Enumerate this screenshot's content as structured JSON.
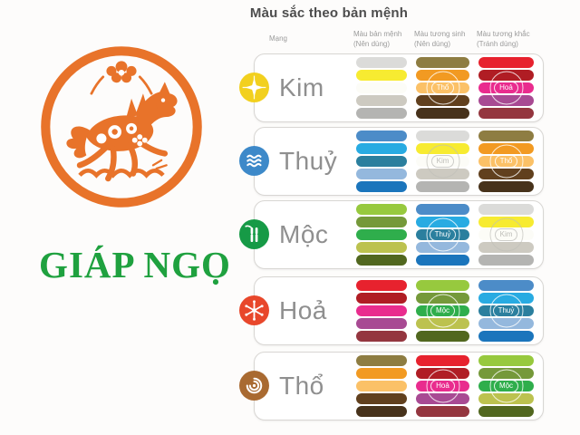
{
  "zodiac": {
    "label": "GIÁP NGỌ",
    "text_color": "#1fa13f",
    "logo_color": "#e8732a",
    "logo_icon": "horse-papercut-icon"
  },
  "table": {
    "title": "Màu sắc theo bản mệnh",
    "headers": {
      "element": "Mạng",
      "own": {
        "line1": "Màu bản mệnh",
        "line2": "(Nên dùng)"
      },
      "sinh": {
        "line1": "Màu tương sinh",
        "line2": "(Nên dùng)"
      },
      "khac": {
        "line1": "Màu tương khắc",
        "line2": "(Tránh dùng)"
      }
    }
  },
  "palettes": {
    "kim": [
      "#dbdbd9",
      "#f7eb31",
      "#fcfcf7",
      "#cdcac1",
      "#b4b4b2"
    ],
    "thuy": [
      "#4c8cc8",
      "#28abe2",
      "#2b7f9e",
      "#94b8dd",
      "#1b75bc"
    ],
    "moc": [
      "#97c93e",
      "#75993a",
      "#2fae4c",
      "#bcc24f",
      "#51671f"
    ],
    "hoa": [
      "#e7222e",
      "#b01d24",
      "#e92c8e",
      "#a84a93",
      "#94363f"
    ],
    "tho": [
      "#8e7d42",
      "#f29a22",
      "#fbc167",
      "#61401e",
      "#47321b"
    ]
  },
  "rows": [
    {
      "name": "Kim",
      "slug": "kim",
      "icon": "sparkle-icon",
      "icon_color": "#f2d01e",
      "own_palette": "kim",
      "sinh_palette": "tho",
      "sinh_label": "Thổ",
      "khac_palette": "hoa",
      "khac_label": "Hoả"
    },
    {
      "name": "Thuỷ",
      "slug": "thuy",
      "icon": "waves-icon",
      "icon_color": "#3d89c9",
      "own_palette": "thuy",
      "sinh_palette": "kim",
      "sinh_label": "Kim",
      "khac_palette": "tho",
      "khac_label": "Thổ"
    },
    {
      "name": "Mộc",
      "slug": "moc",
      "icon": "bamboo-icon",
      "icon_color": "#169a46",
      "own_palette": "moc",
      "sinh_palette": "thuy",
      "sinh_label": "Thuỷ",
      "khac_palette": "kim",
      "khac_label": "Kim"
    },
    {
      "name": "Hoả",
      "slug": "hoa",
      "icon": "spark-icon",
      "icon_color": "#e8472b",
      "own_palette": "hoa",
      "sinh_palette": "moc",
      "sinh_label": "Mộc",
      "khac_palette": "thuy",
      "khac_label": "Thuỷ"
    },
    {
      "name": "Thổ",
      "slug": "tho",
      "icon": "spiral-icon",
      "icon_color": "#a96a31",
      "own_palette": "tho",
      "sinh_palette": "hoa",
      "sinh_label": "Hoả",
      "khac_palette": "moc",
      "khac_label": "Mộc"
    }
  ]
}
